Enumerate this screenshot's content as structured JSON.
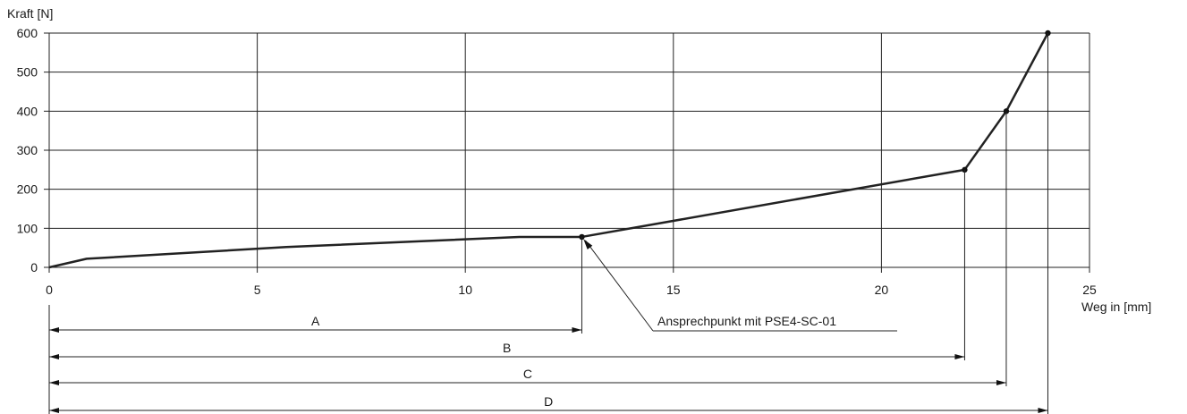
{
  "chart_data": {
    "type": "line",
    "ylabel": "Kraft [N]",
    "xlabel": "Weg in [mm]",
    "xlim": [
      0,
      25
    ],
    "ylim": [
      0,
      600
    ],
    "x_ticks": [
      0,
      5,
      10,
      15,
      20,
      25
    ],
    "y_ticks": [
      0,
      100,
      200,
      300,
      400,
      500,
      600
    ],
    "grid": true,
    "series": [
      {
        "x": [
          0,
          0.9,
          5.7,
          11.3,
          12.8,
          22.0,
          23.0,
          24.0
        ],
        "y": [
          0,
          22,
          52,
          78,
          78,
          250,
          400,
          600
        ]
      }
    ],
    "marked_points": [
      {
        "x": 12.8,
        "y": 78
      },
      {
        "x": 22.0,
        "y": 250
      },
      {
        "x": 23.0,
        "y": 400
      },
      {
        "x": 24.0,
        "y": 600
      }
    ],
    "annotation": {
      "text": "Ansprechpunkt mit PSE4-SC-01",
      "x": 12.8,
      "y": 78
    },
    "dimensions": [
      {
        "label": "A",
        "to": 12.8
      },
      {
        "label": "B",
        "to": 22.0
      },
      {
        "label": "C",
        "to": 23.0
      },
      {
        "label": "D",
        "to": 24.0
      }
    ],
    "colors": {
      "line": "#222222",
      "grid": "#222222"
    }
  }
}
